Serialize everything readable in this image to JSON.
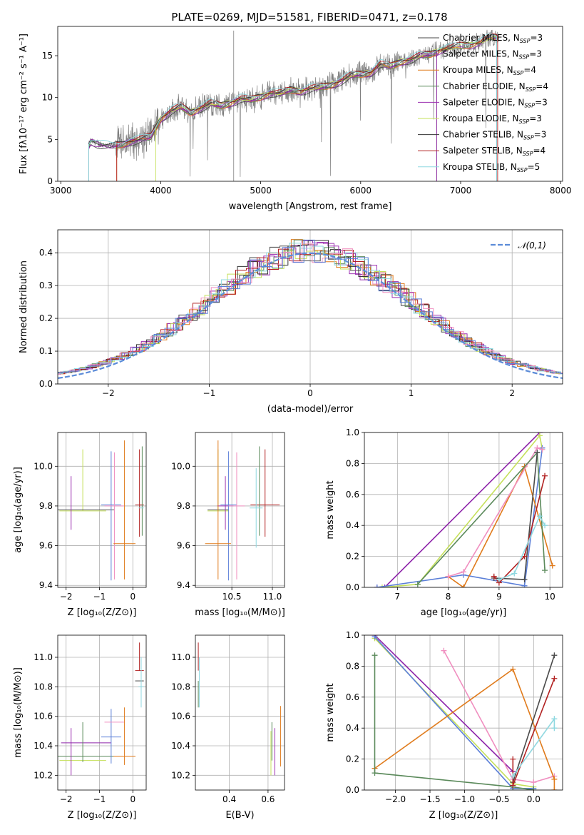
{
  "figure_title": "PLATE=0269, MJD=51581, FIBERID=0471, z=0.178",
  "colors": {
    "c0": "#4a4a4a",
    "c1": "#8e24aa",
    "c2": "#e07b1c",
    "c3": "#5b8a5b",
    "c4": "#9b2fb0",
    "c5": "#c5e05a",
    "c6": "#333333",
    "c7": "#b22222",
    "c8": "#8fd8e0",
    "c9": "#f08fc0",
    "c10": "#5b7fd8"
  },
  "chart_data": [
    {
      "id": "spectrum",
      "type": "line",
      "xlabel": "wavelength [Angstrom, rest frame]",
      "ylabel": "Flux [fλ10⁻¹⁷ erg cm⁻² s⁻¹ A⁻¹]",
      "xlim": [
        2970,
        8020
      ],
      "ylim": [
        0,
        18.5
      ],
      "xticks": [
        3000,
        4000,
        5000,
        6000,
        7000,
        8000
      ],
      "yticks": [
        0,
        5,
        10,
        15
      ],
      "grid": false,
      "legend_position": "top-right",
      "data_range": [
        3280,
        7380
      ],
      "legend": [
        {
          "name": "Chabrier MILES, N",
          "sub": "SSP",
          "tail": "=3",
          "color": "#4a4a4a"
        },
        {
          "name": "Salpeter MILES, N",
          "sub": "SSP",
          "tail": "=3",
          "color": "#9b2fb0"
        },
        {
          "name": "Kroupa MILES, N",
          "sub": "SSP",
          "tail": "=4",
          "color": "#e07b1c"
        },
        {
          "name": "Chabrier ELODIE, N",
          "sub": "SSP",
          "tail": "=4",
          "color": "#5b8a5b"
        },
        {
          "name": "Salpeter ELODIE, N",
          "sub": "SSP",
          "tail": "=3",
          "color": "#9b2fb0"
        },
        {
          "name": "Kroupa ELODIE, N",
          "sub": "SSP",
          "tail": "=3",
          "color": "#c5e05a"
        },
        {
          "name": "Chabrier STELIB, N",
          "sub": "SSP",
          "tail": "=3",
          "color": "#333333"
        },
        {
          "name": "Salpeter STELIB, N",
          "sub": "SSP",
          "tail": "=4",
          "color": "#b22222"
        },
        {
          "name": "Kroupa STELIB, N",
          "sub": "SSP",
          "tail": "=5",
          "color": "#8fd8e0"
        }
      ],
      "model_curve": {
        "x": [
          3280,
          3300,
          3400,
          3500,
          3600,
          3700,
          3800,
          3900,
          4000,
          4100,
          4200,
          4300,
          4400,
          4500,
          4600,
          4700,
          4800,
          4900,
          5000,
          5100,
          5200,
          5300,
          5400,
          5500,
          5600,
          5700,
          5800,
          5900,
          6000,
          6100,
          6200,
          6300,
          6400,
          6500,
          6600,
          6700,
          6800,
          6900,
          7000,
          7100,
          7200,
          7300,
          7380
        ],
        "y": [
          4.3,
          4.8,
          4.4,
          4.2,
          4.4,
          4.8,
          5.0,
          5.3,
          7.5,
          8.4,
          8.9,
          8.2,
          8.8,
          9.3,
          9.0,
          9.4,
          9.9,
          9.7,
          10.1,
          10.6,
          10.5,
          10.9,
          10.8,
          11.1,
          11.2,
          11.5,
          12.0,
          12.6,
          12.8,
          13.0,
          14.0,
          13.7,
          14.3,
          14.6,
          15.0,
          15.2,
          15.7,
          15.9,
          16.2,
          16.3,
          16.6,
          17.2,
          17.1
        ]
      }
    },
    {
      "id": "residuals",
      "type": "line",
      "xlabel": "(data-model)/error",
      "ylabel": "Normed distribution",
      "xlim": [
        -2.5,
        2.5
      ],
      "ylim": [
        0,
        0.47
      ],
      "xticks": [
        -2,
        -1,
        0,
        1,
        2
      ],
      "yticks": [
        0.0,
        0.1,
        0.2,
        0.3,
        0.4
      ],
      "grid": true,
      "legend_position": "top-right",
      "legend": "𝒩(0,1)",
      "reference": "gaussian mean 0 sigma 1"
    },
    {
      "id": "age-vs-Z",
      "type": "scatter",
      "xlabel": "Z [log₁₀(Z/Z⊙)]",
      "ylabel": "age  [log₁₀(age/yr)]",
      "xlim": [
        -2.25,
        0.4
      ],
      "ylim": [
        9.39,
        10.17
      ],
      "xticks": [
        -2,
        -1,
        0
      ],
      "yticks": [
        9.4,
        9.6,
        9.8,
        10.0
      ],
      "grid": true,
      "points": [
        {
          "x": -1.5,
          "y": 9.775,
          "xerr": 0.7,
          "yerr": [
            0.0,
            0.31
          ],
          "color": "#c5e05a"
        },
        {
          "x": -1.4,
          "y": 9.78,
          "xerr": 0.85,
          "yerr": [
            0.0,
            0.0
          ],
          "color": "#4a4a4a"
        },
        {
          "x": -1.85,
          "y": 9.8,
          "xerr": 0.0,
          "yerr": [
            0.12,
            0.15
          ],
          "color": "#9b2fb0"
        },
        {
          "x": -0.65,
          "y": 9.805,
          "xerr": 0.3,
          "yerr": [
            0.38,
            0.27
          ],
          "color": "#5b7fd8"
        },
        {
          "x": -0.55,
          "y": 9.8,
          "xerr": 0.3,
          "yerr": [
            0.37,
            0.27
          ],
          "color": "#f08fc0"
        },
        {
          "x": -0.25,
          "y": 9.61,
          "xerr": 0.33,
          "yerr": [
            0.18,
            0.52
          ],
          "color": "#e07b1c"
        },
        {
          "x": 0.2,
          "y": 9.805,
          "xerr": 0.13,
          "yerr": [
            0.16,
            0.28
          ],
          "color": "#b22222"
        },
        {
          "x": 0.28,
          "y": 9.8,
          "xerr": 0.0,
          "yerr": [
            0.15,
            0.3
          ],
          "color": "#5b8a5b"
        },
        {
          "x": 0.25,
          "y": 9.79,
          "xerr": 0.08,
          "yerr": [
            0.0,
            0.0
          ],
          "color": "#8fd8e0"
        }
      ]
    },
    {
      "id": "age-vs-mass",
      "type": "scatter",
      "xlabel": "mass [log₁₀(M/M⊙)]",
      "ylabel": "",
      "xlim": [
        10.05,
        11.15
      ],
      "ylim": [
        9.39,
        10.17
      ],
      "xticks": [
        10.5,
        11.0
      ],
      "yticks": [
        9.4,
        9.6,
        9.8,
        10.0
      ],
      "grid": true,
      "points": [
        {
          "x": 10.33,
          "y": 9.775,
          "xerr": 0.13,
          "yerr": [
            0.0,
            0.31
          ],
          "color": "#c5e05a"
        },
        {
          "x": 10.33,
          "y": 9.78,
          "xerr": 0.13,
          "yerr": [
            0.0,
            0.0
          ],
          "color": "#4a4a4a"
        },
        {
          "x": 10.42,
          "y": 9.8,
          "xerr": 0.1,
          "yerr": [
            0.12,
            0.15
          ],
          "color": "#9b2fb0"
        },
        {
          "x": 10.46,
          "y": 9.805,
          "xerr": 0.1,
          "yerr": [
            0.38,
            0.27
          ],
          "color": "#5b7fd8"
        },
        {
          "x": 10.56,
          "y": 9.8,
          "xerr": 0.1,
          "yerr": [
            0.37,
            0.27
          ],
          "color": "#f08fc0"
        },
        {
          "x": 10.33,
          "y": 9.61,
          "xerr": 0.16,
          "yerr": [
            0.18,
            0.52
          ],
          "color": "#e07b1c"
        },
        {
          "x": 10.91,
          "y": 9.805,
          "xerr": 0.18,
          "yerr": [
            0.16,
            0.28
          ],
          "color": "#b22222"
        },
        {
          "x": 10.84,
          "y": 9.8,
          "xerr": 0.0,
          "yerr": [
            0.15,
            0.3
          ],
          "color": "#5b8a5b"
        },
        {
          "x": 10.8,
          "y": 9.79,
          "xerr": 0.08,
          "yerr": [
            0.2,
            0.2
          ],
          "color": "#8fd8e0"
        }
      ]
    },
    {
      "id": "weight-vs-age",
      "type": "line",
      "xlabel": "age  [log₁₀(age/yr)]",
      "ylabel": "mass weight",
      "xlim": [
        6.35,
        10.25
      ],
      "ylim": [
        0,
        1.0
      ],
      "xticks": [
        7,
        8,
        9,
        10
      ],
      "yticks": [
        0.0,
        0.2,
        0.4,
        0.6,
        0.8,
        1.0
      ],
      "grid": true,
      "series": [
        {
          "color": "#8e24aa",
          "x": [
            6.6,
            6.75,
            9.8
          ],
          "y": [
            0.0,
            0.0,
            1.0
          ]
        },
        {
          "color": "#c5e05a",
          "x": [
            6.7,
            7.4,
            9.8,
            9.85
          ],
          "y": [
            0.0,
            0.02,
            0.98,
            0.89
          ]
        },
        {
          "color": "#5b7fd8",
          "x": [
            6.6,
            8.3,
            9.5,
            9.85
          ],
          "y": [
            0.0,
            0.08,
            0.01,
            0.9
          ]
        },
        {
          "color": "#e07b1c",
          "x": [
            8.0,
            8.3,
            9.5,
            10.05
          ],
          "y": [
            0.07,
            0.0,
            0.78,
            0.14
          ]
        },
        {
          "color": "#f08fc0",
          "x": [
            8.0,
            8.3,
            9.75,
            9.85
          ],
          "y": [
            0.07,
            0.1,
            0.9,
            0.89
          ]
        },
        {
          "color": "#5b8a5b",
          "x": [
            7.4,
            9.75,
            9.9
          ],
          "y": [
            0.02,
            0.87,
            0.11
          ]
        },
        {
          "color": "#4a4a4a",
          "x": [
            8.9,
            9.5,
            9.75
          ],
          "y": [
            0.06,
            0.05,
            0.87
          ]
        },
        {
          "color": "#b22222",
          "x": [
            8.9,
            9.0,
            9.5,
            9.9
          ],
          "y": [
            0.07,
            0.03,
            0.2,
            0.72
          ]
        },
        {
          "color": "#8fd8e0",
          "x": [
            9.0,
            9.3,
            9.8,
            9.9
          ],
          "y": [
            0.05,
            0.09,
            0.46,
            0.4
          ]
        }
      ]
    },
    {
      "id": "mass-vs-Z",
      "type": "scatter",
      "xlabel": "Z [log₁₀(Z/Z⊙)]",
      "ylabel": "mass [log₁₀(M/M⊙)]",
      "xlim": [
        -2.25,
        0.4
      ],
      "ylim": [
        10.1,
        11.15
      ],
      "xticks": [
        -2,
        -1,
        0
      ],
      "yticks": [
        10.2,
        10.4,
        10.6,
        10.8,
        11.0
      ],
      "grid": true,
      "points": [
        {
          "x": -1.5,
          "y": 10.3,
          "xerr": 0.7,
          "yerr": [
            0.0,
            0.0
          ],
          "color": "#c5e05a"
        },
        {
          "x": -1.4,
          "y": 10.33,
          "xerr": 0.85,
          "yerr": [
            0.0,
            0.0
          ],
          "color": "#5b8a5b"
        },
        {
          "x": -1.85,
          "y": 10.42,
          "xerr": 0.0,
          "yerr": [
            0.22,
            0.1
          ],
          "color": "#9b2fb0"
        },
        {
          "x": -1.4,
          "y": 10.42,
          "xerr": 0.75,
          "yerr": [
            0.0,
            0.0
          ],
          "color": "#8e24aa"
        },
        {
          "x": -1.5,
          "y": 10.43,
          "xerr": 0.0,
          "yerr": [
            0.14,
            0.13
          ],
          "color": "#5b8a5b"
        },
        {
          "x": -0.65,
          "y": 10.46,
          "xerr": 0.3,
          "yerr": [
            0.18,
            0.19
          ],
          "color": "#5b7fd8"
        },
        {
          "x": -0.55,
          "y": 10.56,
          "xerr": 0.3,
          "yerr": [
            0.0,
            0.0
          ],
          "color": "#f08fc0"
        },
        {
          "x": -0.25,
          "y": 10.33,
          "xerr": 0.33,
          "yerr": [
            0.06,
            0.33
          ],
          "color": "#e07b1c"
        },
        {
          "x": 0.2,
          "y": 10.91,
          "xerr": 0.13,
          "yerr": [
            0.0,
            0.19
          ],
          "color": "#b22222"
        },
        {
          "x": 0.2,
          "y": 10.84,
          "xerr": 0.13,
          "yerr": [
            0.0,
            0.0
          ],
          "color": "#4a4a4a"
        },
        {
          "x": 0.25,
          "y": 10.8,
          "xerr": 0.08,
          "yerr": [
            0.14,
            0.2
          ],
          "color": "#8fd8e0"
        }
      ]
    },
    {
      "id": "mass-vs-EBV",
      "type": "scatter",
      "xlabel": "E(B-V)",
      "ylabel": "",
      "xlim": [
        0.225,
        0.685
      ],
      "ylim": [
        10.1,
        11.15
      ],
      "xticks": [
        0.4,
        0.6
      ],
      "yticks": [
        10.2,
        10.4,
        10.6,
        10.8,
        11.0
      ],
      "grid": true,
      "points": [
        {
          "x": 0.24,
          "y": 10.91,
          "xerr": 0.0,
          "yerr": [
            0.0,
            0.19
          ],
          "color": "#b22222"
        },
        {
          "x": 0.24,
          "y": 10.84,
          "xerr": 0.0,
          "yerr": [
            0.18,
            0.0
          ],
          "color": "#5b8a5b"
        },
        {
          "x": 0.245,
          "y": 10.8,
          "xerr": 0.0,
          "yerr": [
            0.14,
            0.2
          ],
          "color": "#8fd8e0"
        },
        {
          "x": 0.62,
          "y": 10.46,
          "xerr": 0.0,
          "yerr": [
            0.16,
            0.1
          ],
          "color": "#5b8a5b"
        },
        {
          "x": 0.615,
          "y": 10.3,
          "xerr": 0.0,
          "yerr": [
            0.1,
            0.2
          ],
          "color": "#c5e05a"
        },
        {
          "x": 0.635,
          "y": 10.42,
          "xerr": 0.0,
          "yerr": [
            0.22,
            0.1
          ],
          "color": "#9b2fb0"
        },
        {
          "x": 0.665,
          "y": 10.46,
          "xerr": 0.0,
          "yerr": [
            0.2,
            0.21
          ],
          "color": "#e07b1c"
        },
        {
          "x": 0.66,
          "y": 10.42,
          "xerr": 0.0,
          "yerr": [
            0.0,
            0.0
          ],
          "color": "#f08fc0"
        }
      ]
    },
    {
      "id": "weight-vs-Z",
      "type": "line",
      "xlabel": "Z [log₁₀(Z/Z⊙)]",
      "ylabel": "mass weight",
      "xlim": [
        -2.45,
        0.42
      ],
      "ylim": [
        0,
        1.0
      ],
      "xticks": [
        -2.0,
        -1.5,
        -1.0,
        -0.5,
        0.0
      ],
      "yticks": [
        0.0,
        0.2,
        0.4,
        0.6,
        0.8,
        1.0
      ],
      "grid": true,
      "series": [
        {
          "color": "#8e24aa",
          "x": [
            -2.3,
            -0.3
          ],
          "y": [
            1.0,
            0.12
          ]
        },
        {
          "color": "#c5e05a",
          "x": [
            -2.3,
            -0.3,
            0.0
          ],
          "y": [
            0.98,
            0.04,
            0.02
          ]
        },
        {
          "color": "#5b7fd8",
          "x": [
            -2.3,
            -0.3,
            0.0
          ],
          "y": [
            0.99,
            0.01,
            0.01
          ]
        },
        {
          "color": "#f08fc0",
          "x": [
            -1.3,
            -0.3,
            0.0,
            0.3
          ],
          "y": [
            0.9,
            0.07,
            0.05,
            0.09
          ]
        },
        {
          "color": "#e07b1c",
          "x": [
            -2.3,
            -0.3,
            0.3,
            0.3
          ],
          "y": [
            0.14,
            0.78,
            0.07,
            0.0
          ]
        },
        {
          "color": "#5b8a5b",
          "x": [
            -2.3,
            -2.3,
            -0.3,
            0.0
          ],
          "y": [
            0.87,
            0.11,
            0.02,
            0.0
          ]
        },
        {
          "color": "#4a4a4a",
          "x": [
            -0.3,
            0.3
          ],
          "y": [
            0.05,
            0.87
          ]
        },
        {
          "color": "#b22222",
          "x": [
            -0.3,
            -0.3,
            0.3
          ],
          "y": [
            0.2,
            0.03,
            0.72
          ]
        },
        {
          "color": "#8fd8e0",
          "x": [
            -0.3,
            0.3,
            0.3
          ],
          "y": [
            0.09,
            0.46,
            0.4
          ]
        }
      ]
    }
  ]
}
